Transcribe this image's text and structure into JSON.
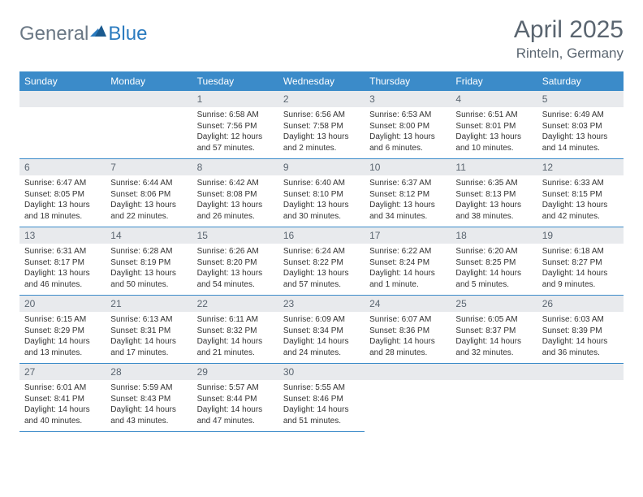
{
  "brand": {
    "text1": "General",
    "text2": "Blue"
  },
  "title": "April 2025",
  "location": "Rinteln, Germany",
  "colors": {
    "header_bg": "#3b8bc9",
    "header_text": "#ffffff",
    "daynum_bg": "#e8eaed",
    "daynum_text": "#5a6570",
    "border": "#3b8bc9",
    "logo_gray": "#6b7885",
    "logo_blue": "#2b7bbf"
  },
  "day_headers": [
    "Sunday",
    "Monday",
    "Tuesday",
    "Wednesday",
    "Thursday",
    "Friday",
    "Saturday"
  ],
  "weeks": [
    [
      {
        "n": "",
        "sr": "",
        "ss": "",
        "dl": ""
      },
      {
        "n": "",
        "sr": "",
        "ss": "",
        "dl": ""
      },
      {
        "n": "1",
        "sr": "Sunrise: 6:58 AM",
        "ss": "Sunset: 7:56 PM",
        "dl": "Daylight: 12 hours and 57 minutes."
      },
      {
        "n": "2",
        "sr": "Sunrise: 6:56 AM",
        "ss": "Sunset: 7:58 PM",
        "dl": "Daylight: 13 hours and 2 minutes."
      },
      {
        "n": "3",
        "sr": "Sunrise: 6:53 AM",
        "ss": "Sunset: 8:00 PM",
        "dl": "Daylight: 13 hours and 6 minutes."
      },
      {
        "n": "4",
        "sr": "Sunrise: 6:51 AM",
        "ss": "Sunset: 8:01 PM",
        "dl": "Daylight: 13 hours and 10 minutes."
      },
      {
        "n": "5",
        "sr": "Sunrise: 6:49 AM",
        "ss": "Sunset: 8:03 PM",
        "dl": "Daylight: 13 hours and 14 minutes."
      }
    ],
    [
      {
        "n": "6",
        "sr": "Sunrise: 6:47 AM",
        "ss": "Sunset: 8:05 PM",
        "dl": "Daylight: 13 hours and 18 minutes."
      },
      {
        "n": "7",
        "sr": "Sunrise: 6:44 AM",
        "ss": "Sunset: 8:06 PM",
        "dl": "Daylight: 13 hours and 22 minutes."
      },
      {
        "n": "8",
        "sr": "Sunrise: 6:42 AM",
        "ss": "Sunset: 8:08 PM",
        "dl": "Daylight: 13 hours and 26 minutes."
      },
      {
        "n": "9",
        "sr": "Sunrise: 6:40 AM",
        "ss": "Sunset: 8:10 PM",
        "dl": "Daylight: 13 hours and 30 minutes."
      },
      {
        "n": "10",
        "sr": "Sunrise: 6:37 AM",
        "ss": "Sunset: 8:12 PM",
        "dl": "Daylight: 13 hours and 34 minutes."
      },
      {
        "n": "11",
        "sr": "Sunrise: 6:35 AM",
        "ss": "Sunset: 8:13 PM",
        "dl": "Daylight: 13 hours and 38 minutes."
      },
      {
        "n": "12",
        "sr": "Sunrise: 6:33 AM",
        "ss": "Sunset: 8:15 PM",
        "dl": "Daylight: 13 hours and 42 minutes."
      }
    ],
    [
      {
        "n": "13",
        "sr": "Sunrise: 6:31 AM",
        "ss": "Sunset: 8:17 PM",
        "dl": "Daylight: 13 hours and 46 minutes."
      },
      {
        "n": "14",
        "sr": "Sunrise: 6:28 AM",
        "ss": "Sunset: 8:19 PM",
        "dl": "Daylight: 13 hours and 50 minutes."
      },
      {
        "n": "15",
        "sr": "Sunrise: 6:26 AM",
        "ss": "Sunset: 8:20 PM",
        "dl": "Daylight: 13 hours and 54 minutes."
      },
      {
        "n": "16",
        "sr": "Sunrise: 6:24 AM",
        "ss": "Sunset: 8:22 PM",
        "dl": "Daylight: 13 hours and 57 minutes."
      },
      {
        "n": "17",
        "sr": "Sunrise: 6:22 AM",
        "ss": "Sunset: 8:24 PM",
        "dl": "Daylight: 14 hours and 1 minute."
      },
      {
        "n": "18",
        "sr": "Sunrise: 6:20 AM",
        "ss": "Sunset: 8:25 PM",
        "dl": "Daylight: 14 hours and 5 minutes."
      },
      {
        "n": "19",
        "sr": "Sunrise: 6:18 AM",
        "ss": "Sunset: 8:27 PM",
        "dl": "Daylight: 14 hours and 9 minutes."
      }
    ],
    [
      {
        "n": "20",
        "sr": "Sunrise: 6:15 AM",
        "ss": "Sunset: 8:29 PM",
        "dl": "Daylight: 14 hours and 13 minutes."
      },
      {
        "n": "21",
        "sr": "Sunrise: 6:13 AM",
        "ss": "Sunset: 8:31 PM",
        "dl": "Daylight: 14 hours and 17 minutes."
      },
      {
        "n": "22",
        "sr": "Sunrise: 6:11 AM",
        "ss": "Sunset: 8:32 PM",
        "dl": "Daylight: 14 hours and 21 minutes."
      },
      {
        "n": "23",
        "sr": "Sunrise: 6:09 AM",
        "ss": "Sunset: 8:34 PM",
        "dl": "Daylight: 14 hours and 24 minutes."
      },
      {
        "n": "24",
        "sr": "Sunrise: 6:07 AM",
        "ss": "Sunset: 8:36 PM",
        "dl": "Daylight: 14 hours and 28 minutes."
      },
      {
        "n": "25",
        "sr": "Sunrise: 6:05 AM",
        "ss": "Sunset: 8:37 PM",
        "dl": "Daylight: 14 hours and 32 minutes."
      },
      {
        "n": "26",
        "sr": "Sunrise: 6:03 AM",
        "ss": "Sunset: 8:39 PM",
        "dl": "Daylight: 14 hours and 36 minutes."
      }
    ],
    [
      {
        "n": "27",
        "sr": "Sunrise: 6:01 AM",
        "ss": "Sunset: 8:41 PM",
        "dl": "Daylight: 14 hours and 40 minutes."
      },
      {
        "n": "28",
        "sr": "Sunrise: 5:59 AM",
        "ss": "Sunset: 8:43 PM",
        "dl": "Daylight: 14 hours and 43 minutes."
      },
      {
        "n": "29",
        "sr": "Sunrise: 5:57 AM",
        "ss": "Sunset: 8:44 PM",
        "dl": "Daylight: 14 hours and 47 minutes."
      },
      {
        "n": "30",
        "sr": "Sunrise: 5:55 AM",
        "ss": "Sunset: 8:46 PM",
        "dl": "Daylight: 14 hours and 51 minutes."
      },
      {
        "n": "",
        "sr": "",
        "ss": "",
        "dl": ""
      },
      {
        "n": "",
        "sr": "",
        "ss": "",
        "dl": ""
      },
      {
        "n": "",
        "sr": "",
        "ss": "",
        "dl": ""
      }
    ]
  ]
}
